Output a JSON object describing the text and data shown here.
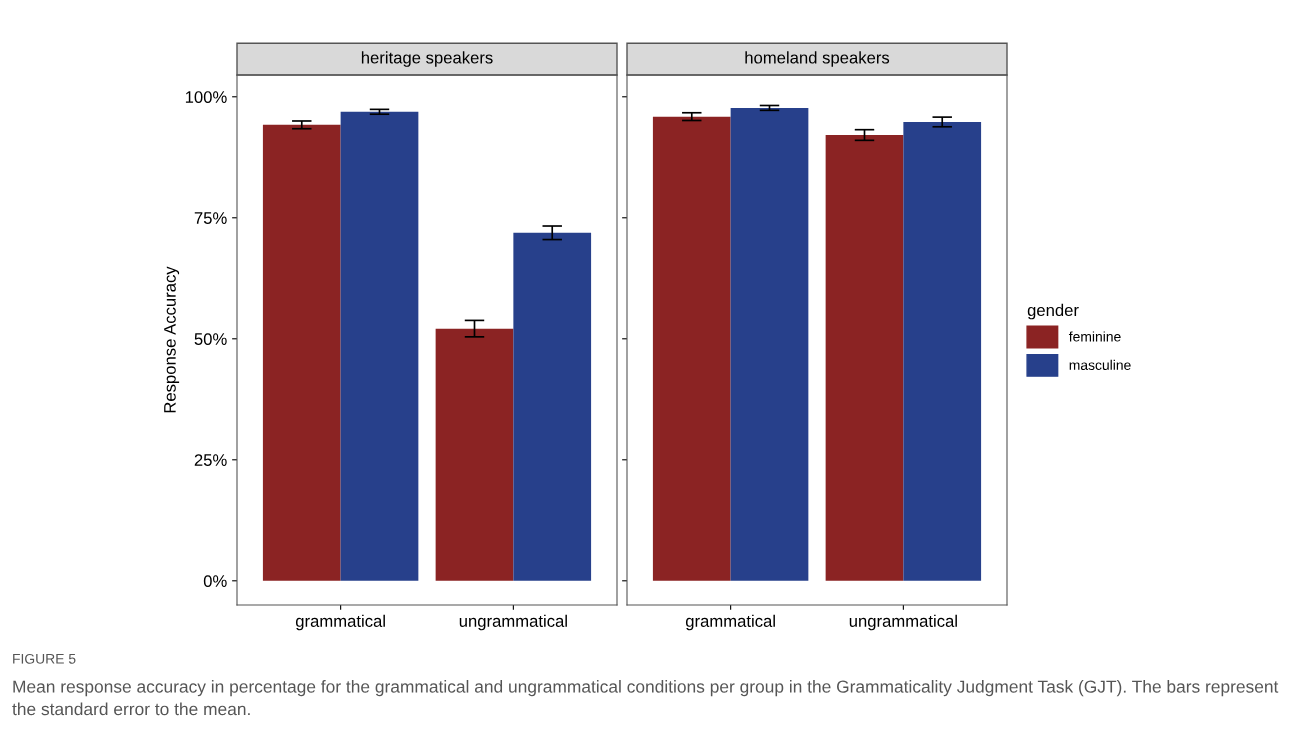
{
  "chart_data": [
    {
      "type": "bar",
      "title": "heritage speakers",
      "ylabel": "Response Accuracy",
      "categories": [
        "grammatical",
        "ungrammatical"
      ],
      "series": [
        {
          "color": "#8b2323",
          "values": [
            94.2,
            52.1
          ],
          "errors": [
            0.8,
            1.7
          ]
        },
        {
          "color": "#27408b",
          "values": [
            96.9,
            71.9
          ],
          "errors": [
            0.5,
            1.4
          ]
        }
      ],
      "ylim": [
        -5,
        104.5
      ],
      "yticks": [
        {
          "value": 0,
          "label": "0%"
        },
        {
          "value": 25,
          "label": "25%"
        },
        {
          "value": 50,
          "label": "50%"
        },
        {
          "value": 75,
          "label": "75%"
        },
        {
          "value": 100,
          "label": "100%"
        }
      ],
      "grid": false,
      "legend": false,
      "annotations": [
        "FIGURE 5",
        "Mean response accuracy in percentage for the grammatical and ungrammatical conditions per group in the Grammaticality Judgment Task (GJT). The bars represent the standard error to the mean."
      ]
    },
    {
      "type": "bar",
      "title": "homeland speakers",
      "legend_title": "gender",
      "categories": [
        "grammatical",
        "ungrammatical"
      ],
      "series": [
        {
          "name": "feminine",
          "color": "#8b2323",
          "values": [
            95.9,
            92.1
          ],
          "errors": [
            0.8,
            1.1
          ]
        },
        {
          "name": "masculine",
          "color": "#27408b",
          "values": [
            97.7,
            94.8
          ],
          "errors": [
            0.5,
            1.0
          ]
        }
      ],
      "ylim": [
        -5,
        104.5
      ],
      "yticks": [
        {
          "value": 0,
          "label": null
        },
        {
          "value": 25,
          "label": null
        },
        {
          "value": 50,
          "label": null
        },
        {
          "value": 75,
          "label": null
        },
        {
          "value": 100,
          "label": null
        }
      ],
      "tick_labels": "x",
      "grid": false,
      "legend": "right"
    }
  ]
}
